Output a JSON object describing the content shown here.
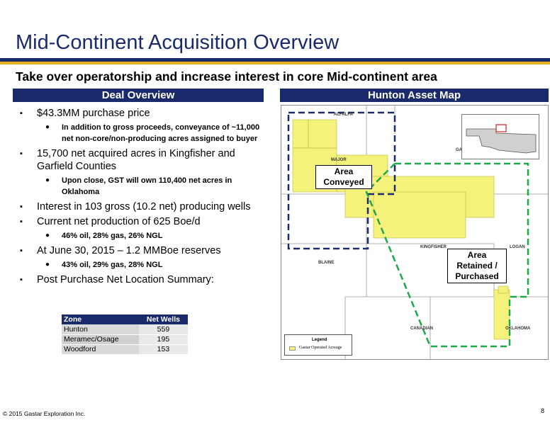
{
  "slide": {
    "title": "Mid-Continent Acquisition Overview",
    "subtitle": "Take over operatorship and increase interest in core Mid-continent area"
  },
  "left_panel": {
    "header": "Deal Overview",
    "bullets": [
      {
        "text": "$43.3MM purchase price",
        "subs": [
          "In addition to gross proceeds, conveyance of ~11,000 net non-core/non-producing acres assigned to buyer"
        ]
      },
      {
        "text": "15,700 net acquired acres in Kingfisher and Garfield Counties",
        "subs": [
          "Upon close, GST will own 110,400 net acres in Oklahoma"
        ]
      },
      {
        "text": "Interest in 103 gross (10.2 net) producing wells",
        "subs": []
      },
      {
        "text": "Current net production of 625 Boe/d",
        "subs": [
          "46% oil, 28% gas, 26% NGL"
        ]
      },
      {
        "text": "At June 30, 2015 – 1.2 MMBoe reserves",
        "subs": [
          "43% oil, 29% gas, 28% NGL"
        ]
      },
      {
        "text": "Post Purchase Net Location Summary:",
        "subs": []
      }
    ],
    "table": {
      "headers": [
        "Zone",
        "Net Wells"
      ],
      "rows": [
        [
          "Hunton",
          "559"
        ],
        [
          "Meramec/Osage",
          "195"
        ],
        [
          "Woodford",
          "153"
        ]
      ]
    }
  },
  "right_panel": {
    "header": "Hunton Asset Map",
    "counties": [
      "ALFALFA",
      "GA",
      "MAJOR",
      "KINGFISHER",
      "LOGAN",
      "BLAINE",
      "CANADIAN",
      "OKLAHOMA"
    ],
    "callout_conveyed": [
      "Area",
      "Conveyed"
    ],
    "callout_retained": [
      "Area",
      "Retained /",
      "Purchased"
    ],
    "legend_title": "Legend",
    "legend_item": "Gastar Operated Acreage",
    "colors": {
      "acreage": "#f4f27a",
      "conveyed_outline": "#1b2a6b",
      "retained_outline": "#1ea84a",
      "inset_marker": "#d02020"
    }
  },
  "footer": {
    "copyright": "© 2015 Gastar Exploration Inc.",
    "page_number": "8"
  },
  "theme": {
    "navy": "#1b2a6b",
    "gold": "#e8b020"
  }
}
